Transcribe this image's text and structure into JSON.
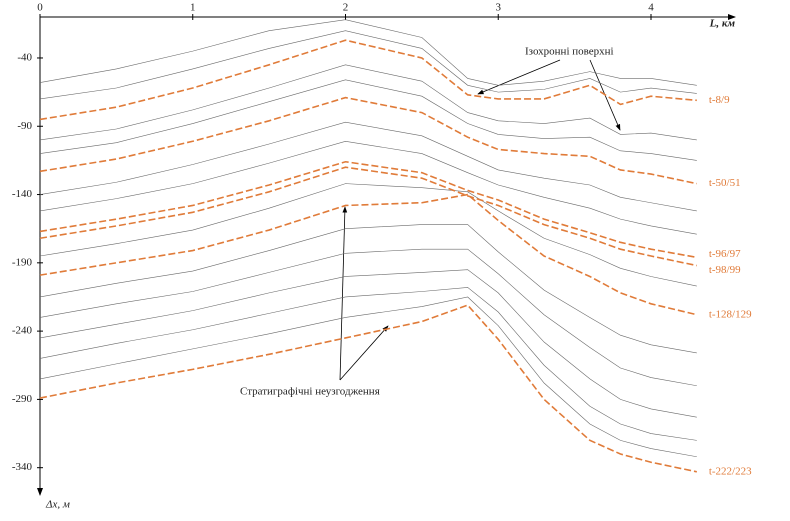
{
  "chart_data": {
    "type": "line",
    "x_label": "L, км",
    "y_label": "Δx, м",
    "annotations": [
      "Ізохронні поверхні",
      "Стратиграфічні неузгодження"
    ],
    "x": [
      0,
      0.5,
      1,
      1.5,
      2,
      2.5,
      2.8,
      3,
      3.3,
      3.6,
      3.8,
      4,
      4.3
    ],
    "xlim": [
      0,
      4.55
    ],
    "xticks": [
      0,
      1,
      2,
      3,
      4
    ],
    "ylim": [
      -10,
      -360
    ],
    "yticks": [
      -40,
      -90,
      -140,
      -190,
      -240,
      -290,
      -340
    ],
    "series": [
      {
        "name": "t-8/9",
        "color": "#e07b39",
        "values": [
          -85,
          -76,
          -62,
          -45,
          -27,
          -40,
          -67,
          -70,
          -70,
          -60,
          -74,
          -68,
          -71
        ]
      },
      {
        "name": "t-50/51",
        "color": "#e07b39",
        "values": [
          -123,
          -114,
          -101,
          -86,
          -69,
          -80,
          -98,
          -107,
          -110,
          -112,
          -122,
          -125,
          -132
        ]
      },
      {
        "name": "t-96/97",
        "color": "#e07b39",
        "values": [
          -167,
          -158,
          -148,
          -133,
          -116,
          -124,
          -137,
          -144,
          -158,
          -168,
          -175,
          -180,
          -186
        ]
      },
      {
        "name": "t-98/99",
        "color": "#e07b39",
        "values": [
          -172,
          -163,
          -153,
          -138,
          -120,
          -128,
          -141,
          -148,
          -162,
          -172,
          -180,
          -185,
          -192
        ]
      },
      {
        "name": "t-128/129",
        "color": "#e07b39",
        "values": [
          -199,
          -190,
          -181,
          -166,
          -148,
          -146,
          -140,
          -159,
          -185,
          -200,
          -212,
          -220,
          -228
        ]
      },
      {
        "name": "t-222/223",
        "color": "#e07b39",
        "values": [
          -289,
          -278,
          -268,
          -257,
          -245,
          -233,
          -221,
          -246,
          -290,
          -320,
          -330,
          -336,
          -343
        ]
      }
    ],
    "background_lines": {
      "color": "#6a6a6a",
      "values": [
        [
          -58,
          -48,
          -35,
          -20,
          -12,
          -25,
          -55,
          -60,
          -57,
          -50,
          -55,
          -55,
          -60
        ],
        [
          -70,
          -62,
          -48,
          -33,
          -20,
          -33,
          -60,
          -65,
          -63,
          -55,
          -65,
          -62,
          -66
        ],
        [
          -100,
          -92,
          -78,
          -62,
          -45,
          -57,
          -80,
          -86,
          -88,
          -84,
          -96,
          -95,
          -100
        ],
        [
          -110,
          -102,
          -88,
          -72,
          -56,
          -68,
          -88,
          -96,
          -99,
          -98,
          -108,
          -110,
          -115
        ],
        [
          -140,
          -131,
          -118,
          -103,
          -87,
          -97,
          -112,
          -122,
          -128,
          -133,
          -142,
          -146,
          -152
        ],
        [
          -152,
          -143,
          -132,
          -117,
          -101,
          -110,
          -124,
          -133,
          -142,
          -150,
          -158,
          -163,
          -169
        ],
        [
          -185,
          -176,
          -166,
          -150,
          -132,
          -135,
          -138,
          -152,
          -172,
          -184,
          -194,
          -200,
          -207
        ],
        [
          -215,
          -205,
          -196,
          -181,
          -165,
          -162,
          -162,
          -182,
          -210,
          -230,
          -243,
          -250,
          -256
        ],
        [
          -230,
          -220,
          -211,
          -197,
          -183,
          -180,
          -180,
          -198,
          -228,
          -252,
          -267,
          -274,
          -280
        ],
        [
          -245,
          -235,
          -225,
          -212,
          -200,
          -197,
          -195,
          -212,
          -248,
          -275,
          -290,
          -297,
          -303
        ],
        [
          -260,
          -249,
          -239,
          -227,
          -215,
          -211,
          -208,
          -226,
          -265,
          -295,
          -308,
          -315,
          -320
        ],
        [
          -275,
          -264,
          -253,
          -242,
          -230,
          -222,
          -215,
          -236,
          -278,
          -308,
          -320,
          -326,
          -332
        ]
      ]
    }
  }
}
